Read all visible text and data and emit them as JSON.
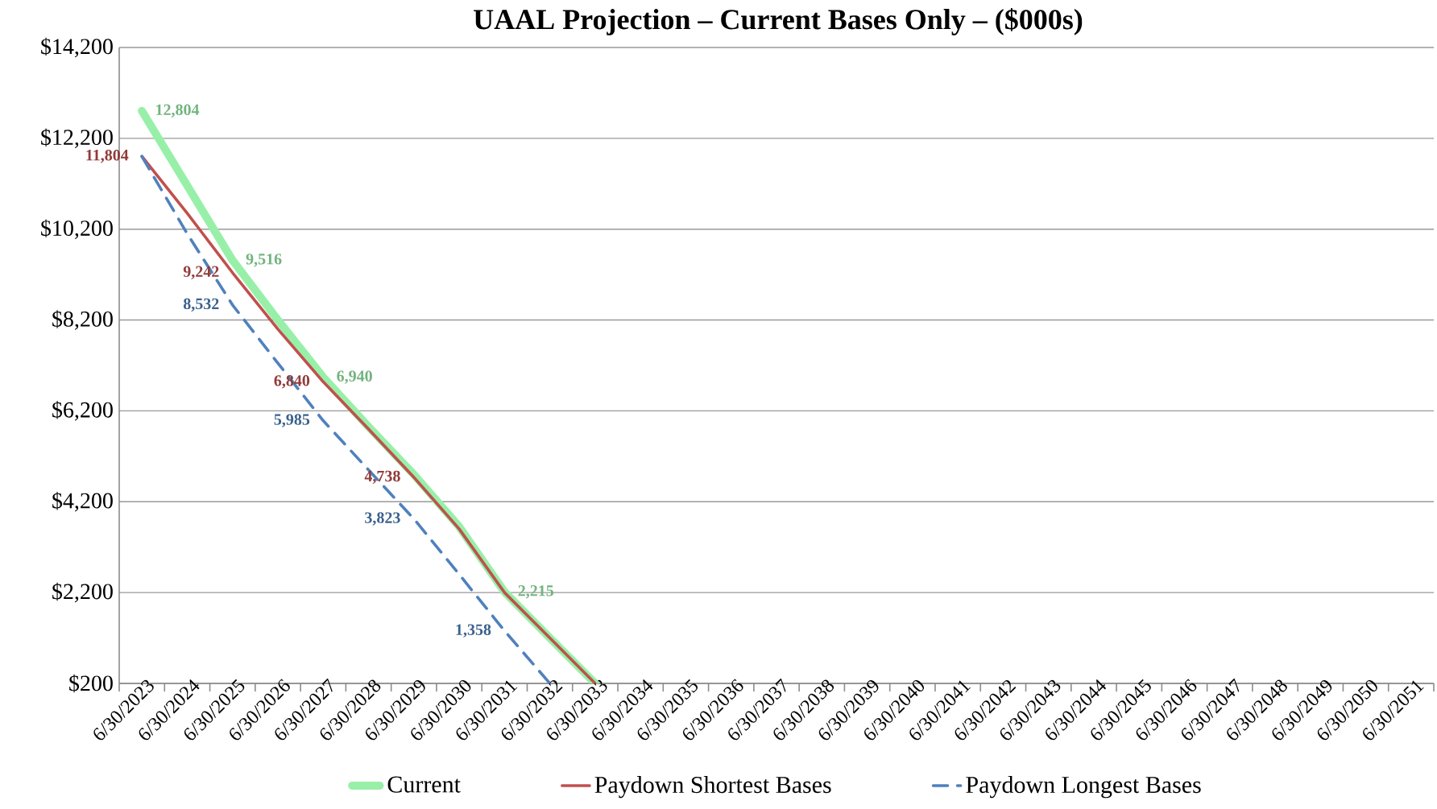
{
  "chart_data": {
    "type": "line",
    "title": "UAAL Projection – Current Bases Only – ($000s)",
    "categories": [
      "6/30/2023",
      "6/30/2024",
      "6/30/2025",
      "6/30/2026",
      "6/30/2027",
      "6/30/2028",
      "6/30/2029",
      "6/30/2030",
      "6/30/2031",
      "6/30/2032",
      "6/30/2033",
      "6/30/2034",
      "6/30/2035",
      "6/30/2036",
      "6/30/2037",
      "6/30/2038",
      "6/30/2039",
      "6/30/2040",
      "6/30/2041",
      "6/30/2042",
      "6/30/2043",
      "6/30/2044",
      "6/30/2045",
      "6/30/2046",
      "6/30/2047",
      "6/30/2048",
      "6/30/2049",
      "6/30/2050",
      "6/30/2051"
    ],
    "series": [
      {
        "name": "Current",
        "color": "#98f0a8",
        "line_style": "solid",
        "values": [
          12804,
          11160,
          9516,
          8200,
          6940,
          5850,
          4800,
          3650,
          2215,
          1200,
          200,
          null,
          null,
          null,
          null,
          null,
          null,
          null,
          null,
          null,
          null,
          null,
          null,
          null,
          null,
          null,
          null,
          null,
          null
        ],
        "value_labels": [
          "12,804",
          null,
          "9,516",
          null,
          "6,940",
          null,
          null,
          null,
          "2,215",
          null,
          null,
          null,
          null,
          null,
          null,
          null,
          null,
          null,
          null,
          null,
          null,
          null,
          null,
          null,
          null,
          null,
          null,
          null,
          null
        ]
      },
      {
        "name": "Paydown Shortest Bases",
        "color": "#c0504d",
        "line_style": "solid",
        "values": [
          11804,
          10550,
          9242,
          8000,
          6840,
          5800,
          4738,
          3600,
          2200,
          1200,
          200,
          null,
          null,
          null,
          null,
          null,
          null,
          null,
          null,
          null,
          null,
          null,
          null,
          null,
          null,
          null,
          null,
          null,
          null
        ],
        "value_labels": [
          "11,804",
          null,
          "9,242",
          null,
          "6,840",
          null,
          "4,738",
          null,
          null,
          null,
          null,
          null,
          null,
          null,
          null,
          null,
          null,
          null,
          null,
          null,
          null,
          null,
          null,
          null,
          null,
          null,
          null,
          null,
          null
        ]
      },
      {
        "name": "Paydown Longest Bases",
        "color": "#4f81bd",
        "line_style": "dashed",
        "values": [
          11800,
          10100,
          8532,
          7250,
          5985,
          4900,
          3823,
          2600,
          1358,
          200,
          null,
          null,
          null,
          null,
          null,
          null,
          null,
          null,
          null,
          null,
          null,
          null,
          null,
          null,
          null,
          null,
          null,
          null,
          null
        ],
        "value_labels": [
          null,
          null,
          "8,532",
          null,
          "5,985",
          null,
          "3,823",
          null,
          "1,358",
          null,
          null,
          null,
          null,
          null,
          null,
          null,
          null,
          null,
          null,
          null,
          null,
          null,
          null,
          null,
          null,
          null,
          null,
          null,
          null
        ]
      }
    ],
    "ylim": [
      200,
      14200
    ],
    "yticks": [
      {
        "value": 200,
        "label": "$200"
      },
      {
        "value": 2200,
        "label": "$2,200"
      },
      {
        "value": 4200,
        "label": "$4,200"
      },
      {
        "value": 6200,
        "label": "$6,200"
      },
      {
        "value": 8200,
        "label": "$8,200"
      },
      {
        "value": 10200,
        "label": "$10,200"
      },
      {
        "value": 12200,
        "label": "$12,200"
      },
      {
        "value": 14200,
        "label": "$14,200"
      }
    ],
    "grid": "y",
    "legend": "bottom",
    "marker": "none"
  }
}
